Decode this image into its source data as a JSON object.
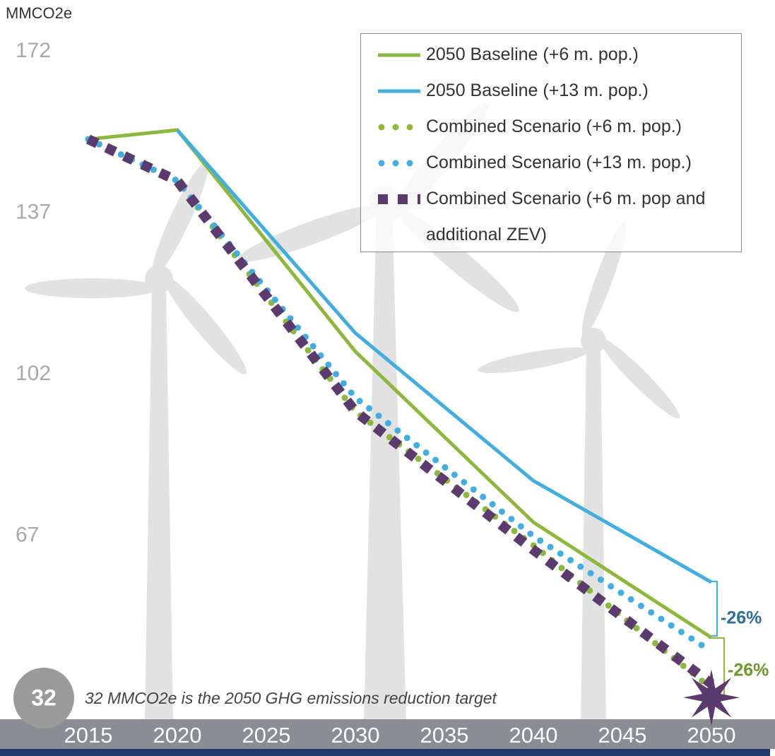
{
  "chart_data": {
    "type": "line",
    "y_label": "MMCO2e",
    "x": [
      2015,
      2020,
      2030,
      2040,
      2050
    ],
    "xlim": [
      2015,
      2050
    ],
    "xticks": [
      2015,
      2020,
      2025,
      2030,
      2035,
      2040,
      2045,
      2050
    ],
    "ylim": [
      27,
      172
    ],
    "yticks": [
      172,
      137,
      102,
      67
    ],
    "legend": "top-right",
    "series": [
      {
        "name": "2050 Baseline (+6 m. pop.)",
        "color": "#8cb83c",
        "style": "solid",
        "values": [
          153,
          155,
          107,
          70,
          45
        ]
      },
      {
        "name": "2050 Baseline (+13 m. pop.)",
        "color": "#40aee0",
        "style": "solid",
        "values": [
          null,
          155,
          111,
          79,
          57
        ]
      },
      {
        "name": "Combined Scenario (+6 m. pop.)",
        "color": "#8cb83c",
        "style": "dotted",
        "values": [
          153,
          144,
          94,
          65,
          34
        ]
      },
      {
        "name": "Combined Scenario (+13 m. pop.)",
        "color": "#40aee0",
        "style": "dotted",
        "values": [
          153,
          144,
          97,
          67,
          42
        ]
      },
      {
        "name": "Combined Scenario (+6 m. pop and additional ZEV)",
        "color": "#5b3a6e",
        "style": "dashed",
        "values": [
          153,
          144,
          94,
          64,
          35
        ]
      }
    ],
    "annotations": [
      "-26%",
      "-26%"
    ],
    "target": {
      "x": 2050,
      "value": 32,
      "label": "32 MMCO2e is the 2050 GHG emissions reduction target"
    }
  }
}
